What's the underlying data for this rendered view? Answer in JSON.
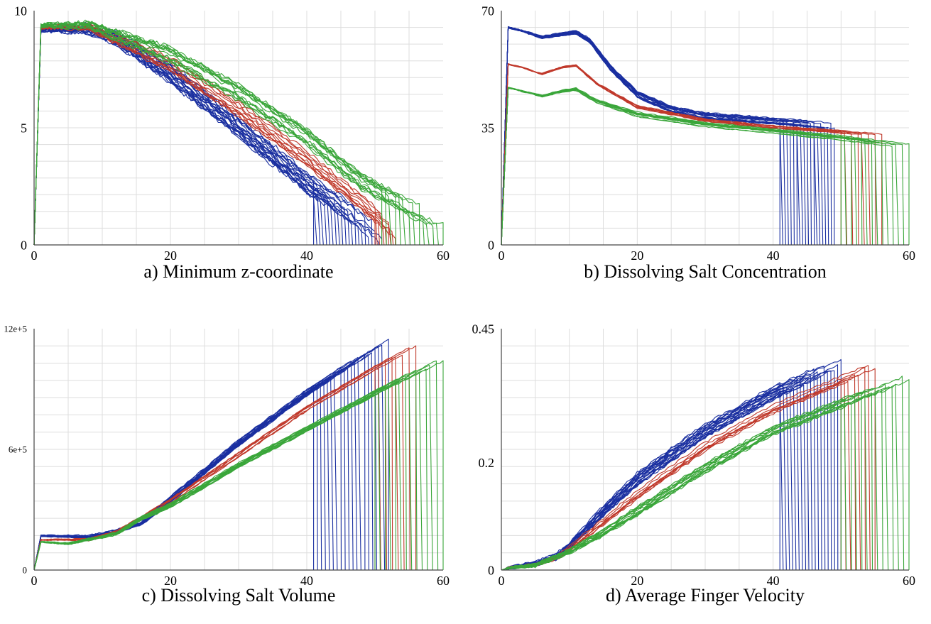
{
  "colors": {
    "blue": "#1a2fa0",
    "red": "#c0392b",
    "green": "#3aa63a",
    "grid": "#dddddd",
    "axis": "#444444"
  },
  "chart_data": [
    {
      "type": "line",
      "title": "a) Minimum z-coordinate",
      "xlim": [
        0,
        60
      ],
      "ylim": [
        0,
        10
      ],
      "xticks": [
        {
          "v": 0,
          "label": "0"
        },
        {
          "v": 20,
          "label": "20"
        },
        {
          "v": 40,
          "label": "40"
        },
        {
          "v": 60,
          "label": "60"
        }
      ],
      "yticks": [
        {
          "v": 0,
          "label": "0"
        },
        {
          "v": 5,
          "label": "5"
        },
        {
          "v": 10,
          "label": "10"
        }
      ],
      "grid": true,
      "legend": "none",
      "series": [
        {
          "color": "blue",
          "count": 22,
          "end_range": [
            41,
            51
          ],
          "spread": 0.5,
          "points": [
            [
              0,
              0
            ],
            [
              1,
              9.2
            ],
            [
              8,
              9.2
            ],
            [
              12,
              8.8
            ],
            [
              20,
              7.3
            ],
            [
              30,
              5.0
            ],
            [
              40,
              2.6
            ],
            [
              48,
              1.0
            ],
            [
              51,
              0.3
            ]
          ]
        },
        {
          "color": "red",
          "count": 10,
          "end_range": [
            50,
            53
          ],
          "spread": 0.35,
          "points": [
            [
              0,
              0
            ],
            [
              1,
              9.3
            ],
            [
              8,
              9.3
            ],
            [
              12,
              8.8
            ],
            [
              20,
              7.7
            ],
            [
              30,
              5.8
            ],
            [
              40,
              3.7
            ],
            [
              48,
              1.8
            ],
            [
              53,
              0.6
            ]
          ]
        },
        {
          "color": "green",
          "count": 14,
          "end_range": [
            51,
            60
          ],
          "spread": 0.45,
          "points": [
            [
              0,
              0
            ],
            [
              1,
              9.35
            ],
            [
              8,
              9.35
            ],
            [
              12,
              8.9
            ],
            [
              20,
              8.0
            ],
            [
              30,
              6.4
            ],
            [
              40,
              4.5
            ],
            [
              48,
              2.6
            ],
            [
              55,
              1.5
            ],
            [
              60,
              0.9
            ]
          ]
        }
      ]
    },
    {
      "type": "line",
      "title": "b) Dissolving Salt Concentration",
      "xlim": [
        0,
        60
      ],
      "ylim": [
        0,
        70
      ],
      "xticks": [
        {
          "v": 0,
          "label": "0"
        },
        {
          "v": 20,
          "label": "20"
        },
        {
          "v": 40,
          "label": "40"
        },
        {
          "v": 60,
          "label": "60"
        }
      ],
      "yticks": [
        {
          "v": 0,
          "label": "0"
        },
        {
          "v": 35,
          "label": "35"
        },
        {
          "v": 70,
          "label": "70"
        }
      ],
      "grid": true,
      "legend": "none",
      "series": [
        {
          "color": "blue",
          "count": 20,
          "end_range": [
            41,
            49
          ],
          "spread": 1.0,
          "points": [
            [
              0,
              0
            ],
            [
              1,
              65
            ],
            [
              3,
              64
            ],
            [
              6,
              62
            ],
            [
              9,
              63
            ],
            [
              11,
              63.5
            ],
            [
              13,
              61
            ],
            [
              16,
              53
            ],
            [
              20,
              45
            ],
            [
              25,
              40.5
            ],
            [
              30,
              38.5
            ],
            [
              40,
              37
            ],
            [
              49,
              35.5
            ]
          ]
        },
        {
          "color": "red",
          "count": 8,
          "end_range": [
            50,
            56
          ],
          "spread": 0.7,
          "points": [
            [
              0,
              0
            ],
            [
              1,
              54
            ],
            [
              3,
              53
            ],
            [
              6,
              51
            ],
            [
              9,
              53
            ],
            [
              11,
              53.5
            ],
            [
              14,
              48
            ],
            [
              20,
              41
            ],
            [
              30,
              37
            ],
            [
              40,
              35
            ],
            [
              50,
              33.5
            ],
            [
              56,
              32.5
            ]
          ]
        },
        {
          "color": "green",
          "count": 14,
          "end_range": [
            50,
            60
          ],
          "spread": 0.7,
          "points": [
            [
              0,
              0
            ],
            [
              1,
              47
            ],
            [
              3,
              46
            ],
            [
              6,
              44.5
            ],
            [
              9,
              46
            ],
            [
              11,
              46.5
            ],
            [
              14,
              43
            ],
            [
              20,
              39
            ],
            [
              30,
              36
            ],
            [
              40,
              34
            ],
            [
              50,
              32
            ],
            [
              60,
              29.5
            ]
          ]
        }
      ]
    },
    {
      "type": "line",
      "title": "c) Dissolving Salt Volume",
      "xlim": [
        0,
        60
      ],
      "ylim": [
        0,
        1200000
      ],
      "xticks": [
        {
          "v": 0,
          "label": "0"
        },
        {
          "v": 20,
          "label": "20"
        },
        {
          "v": 40,
          "label": "40"
        },
        {
          "v": 60,
          "label": "60"
        }
      ],
      "yticks": [
        {
          "v": 0,
          "label": "0"
        },
        {
          "v": 600000,
          "label": "6e+5"
        },
        {
          "v": 1200000,
          "label": "12e+5"
        }
      ],
      "grid": true,
      "legend": "none",
      "series": [
        {
          "color": "blue",
          "count": 20,
          "end_range": [
            41,
            52
          ],
          "spread": 18000,
          "points": [
            [
              0,
              0
            ],
            [
              1,
              170000
            ],
            [
              8,
              165000
            ],
            [
              12,
              190000
            ],
            [
              16,
              240000
            ],
            [
              20,
              350000
            ],
            [
              30,
              630000
            ],
            [
              40,
              880000
            ],
            [
              52,
              1150000
            ]
          ]
        },
        {
          "color": "red",
          "count": 8,
          "end_range": [
            50,
            56
          ],
          "spread": 14000,
          "points": [
            [
              0,
              0
            ],
            [
              1,
              150000
            ],
            [
              8,
              150000
            ],
            [
              12,
              185000
            ],
            [
              16,
              260000
            ],
            [
              20,
              340000
            ],
            [
              30,
              570000
            ],
            [
              40,
              800000
            ],
            [
              50,
              1000000
            ],
            [
              56,
              1110000
            ]
          ]
        },
        {
          "color": "green",
          "count": 14,
          "end_range": [
            50,
            60
          ],
          "spread": 14000,
          "points": [
            [
              0,
              0
            ],
            [
              1,
              140000
            ],
            [
              5,
              130000
            ],
            [
              12,
              180000
            ],
            [
              16,
              260000
            ],
            [
              20,
              320000
            ],
            [
              30,
              520000
            ],
            [
              40,
              700000
            ],
            [
              50,
              880000
            ],
            [
              60,
              1050000
            ]
          ]
        }
      ]
    },
    {
      "type": "line",
      "title": "d) Average Finger Velocity",
      "xlim": [
        0,
        60
      ],
      "ylim": [
        0,
        0.45
      ],
      "xticks": [
        {
          "v": 0,
          "label": "0"
        },
        {
          "v": 20,
          "label": "20"
        },
        {
          "v": 40,
          "label": "40"
        },
        {
          "v": 60,
          "label": "60"
        }
      ],
      "yticks": [
        {
          "v": 0,
          "label": "0"
        },
        {
          "v": 0.2,
          "label": "0.2"
        },
        {
          "v": 0.45,
          "label": "0.45"
        }
      ],
      "grid": true,
      "legend": "none",
      "series": [
        {
          "color": "blue",
          "count": 20,
          "end_range": [
            41,
            50
          ],
          "spread": 0.012,
          "points": [
            [
              0,
              0
            ],
            [
              1,
              0.004
            ],
            [
              5,
              0.012
            ],
            [
              8,
              0.025
            ],
            [
              10,
              0.045
            ],
            [
              15,
              0.11
            ],
            [
              20,
              0.17
            ],
            [
              30,
              0.26
            ],
            [
              40,
              0.33
            ],
            [
              50,
              0.39
            ]
          ]
        },
        {
          "color": "red",
          "count": 8,
          "end_range": [
            50,
            55
          ],
          "spread": 0.009,
          "points": [
            [
              0,
              0
            ],
            [
              1,
              0.004
            ],
            [
              5,
              0.01
            ],
            [
              8,
              0.022
            ],
            [
              10,
              0.04
            ],
            [
              15,
              0.09
            ],
            [
              20,
              0.14
            ],
            [
              30,
              0.23
            ],
            [
              40,
              0.3
            ],
            [
              55,
              0.38
            ]
          ]
        },
        {
          "color": "green",
          "count": 14,
          "end_range": [
            50,
            60
          ],
          "spread": 0.01,
          "points": [
            [
              0,
              0
            ],
            [
              1,
              0.004
            ],
            [
              5,
              0.009
            ],
            [
              10,
              0.035
            ],
            [
              15,
              0.07
            ],
            [
              20,
              0.11
            ],
            [
              30,
              0.19
            ],
            [
              40,
              0.26
            ],
            [
              50,
              0.31
            ],
            [
              60,
              0.36
            ]
          ]
        }
      ]
    }
  ]
}
